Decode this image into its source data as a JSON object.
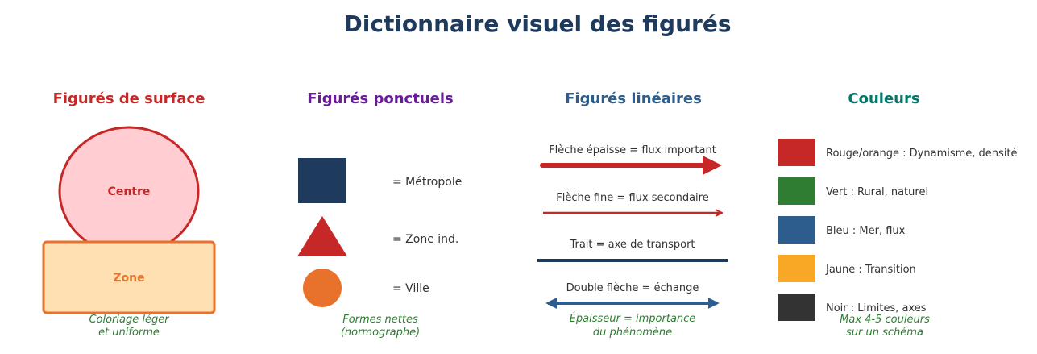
{
  "title": "Dictionnaire visuel des figurés",
  "surface": {
    "heading": "Figurés de surface",
    "centre": "Centre",
    "zone": "Zone",
    "note": [
      "Coloriage léger",
      "et uniforme"
    ]
  },
  "ponctuels": {
    "heading": "Figurés ponctuels",
    "items": [
      {
        "shape": "square",
        "label": "= Métropole",
        "color": "#1e3a5c"
      },
      {
        "shape": "triangle",
        "label": "= Zone ind.",
        "color": "#c62828"
      },
      {
        "shape": "circle",
        "label": "= Ville",
        "color": "#e8722c"
      }
    ],
    "note": [
      "Formes nettes",
      "(normographe)"
    ]
  },
  "lineaires": {
    "heading": "Figurés linéaires",
    "items": [
      {
        "label": "Flèche épaisse = flux important",
        "color": "#c62828"
      },
      {
        "label": "Flèche fine = flux secondaire",
        "color": "#c62828"
      },
      {
        "label": "Trait = axe de transport",
        "color": "#1e3a5c"
      },
      {
        "label": "Double flèche = échange",
        "color": "#2d5d8c"
      }
    ],
    "note": [
      "Épaisseur = importance",
      "du phénomène"
    ]
  },
  "couleurs": {
    "heading": "Couleurs",
    "items": [
      {
        "label": "Rouge/orange : Dynamisme, densité",
        "color": "#c62828"
      },
      {
        "label": "Vert : Rural, naturel",
        "color": "#2e7d32"
      },
      {
        "label": "Bleu : Mer, flux",
        "color": "#2d5d8c"
      },
      {
        "label": "Jaune : Transition",
        "color": "#f9a825"
      },
      {
        "label": "Noir : Limites, axes",
        "color": "#333333"
      }
    ],
    "note": [
      "Max 4-5 couleurs",
      "sur un schéma"
    ]
  }
}
